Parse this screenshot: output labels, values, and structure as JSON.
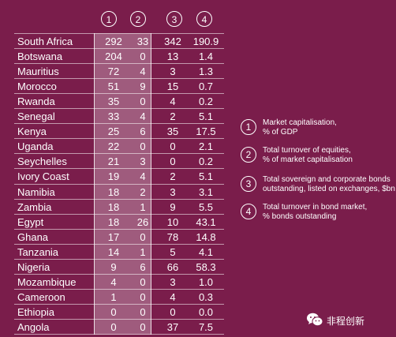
{
  "chart_data": {
    "type": "table",
    "column_headers": [
      "1",
      "2",
      "3",
      "4"
    ],
    "rows": [
      {
        "country": "South Africa",
        "values": [
          "292",
          "33",
          "342",
          "190.9"
        ]
      },
      {
        "country": "Botswana",
        "values": [
          "204",
          "0",
          "13",
          "1.4"
        ]
      },
      {
        "country": "Mauritius",
        "values": [
          "72",
          "4",
          "3",
          "1.3"
        ]
      },
      {
        "country": "Morocco",
        "values": [
          "51",
          "9",
          "15",
          "0.7"
        ]
      },
      {
        "country": "Rwanda",
        "values": [
          "35",
          "0",
          "4",
          "0.2"
        ]
      },
      {
        "country": "Senegal",
        "values": [
          "33",
          "4",
          "2",
          "5.1"
        ]
      },
      {
        "country": "Kenya",
        "values": [
          "25",
          "6",
          "35",
          "17.5"
        ]
      },
      {
        "country": "Uganda",
        "values": [
          "22",
          "0",
          "0",
          "2.1"
        ]
      },
      {
        "country": "Seychelles",
        "values": [
          "21",
          "3",
          "0",
          "0.2"
        ]
      },
      {
        "country": "Ivory Coast",
        "values": [
          "19",
          "4",
          "2",
          "5.1"
        ]
      },
      {
        "country": "Namibia",
        "values": [
          "18",
          "2",
          "3",
          "3.1"
        ]
      },
      {
        "country": "Zambia",
        "values": [
          "18",
          "1",
          "9",
          "5.5"
        ]
      },
      {
        "country": "Egypt",
        "values": [
          "18",
          "26",
          "10",
          "43.1"
        ]
      },
      {
        "country": "Ghana",
        "values": [
          "17",
          "0",
          "78",
          "14.8"
        ]
      },
      {
        "country": "Tanzania",
        "values": [
          "14",
          "1",
          "5",
          "4.1"
        ]
      },
      {
        "country": "Nigeria",
        "values": [
          "9",
          "6",
          "66",
          "58.3"
        ]
      },
      {
        "country": "Mozambique",
        "values": [
          "4",
          "0",
          "3",
          "1.0"
        ]
      },
      {
        "country": "Cameroon",
        "values": [
          "1",
          "0",
          "4",
          "0.3"
        ]
      },
      {
        "country": "Ethiopia",
        "values": [
          "0",
          "0",
          "0",
          "0.0"
        ]
      },
      {
        "country": "Angola",
        "values": [
          "0",
          "0",
          "37",
          "7.5"
        ]
      }
    ],
    "legend": [
      {
        "num": "1",
        "line1": "Market capitalisation,",
        "line2": "% of GDP"
      },
      {
        "num": "2",
        "line1": "Total turnover of equities,",
        "line2": "% of  market capitalisation"
      },
      {
        "num": "3",
        "line1": "Total sovereign and corporate bonds",
        "line2": "outstanding, listed on exchanges, $bn"
      },
      {
        "num": "4",
        "line1": "Total turnover in bond market,",
        "line2": "% bonds outstanding"
      }
    ]
  },
  "watermark": {
    "text": "非程创新",
    "icon": "wechat-icon"
  },
  "colors": {
    "background": "#7a1d4b",
    "highlight": "#b57a97"
  }
}
